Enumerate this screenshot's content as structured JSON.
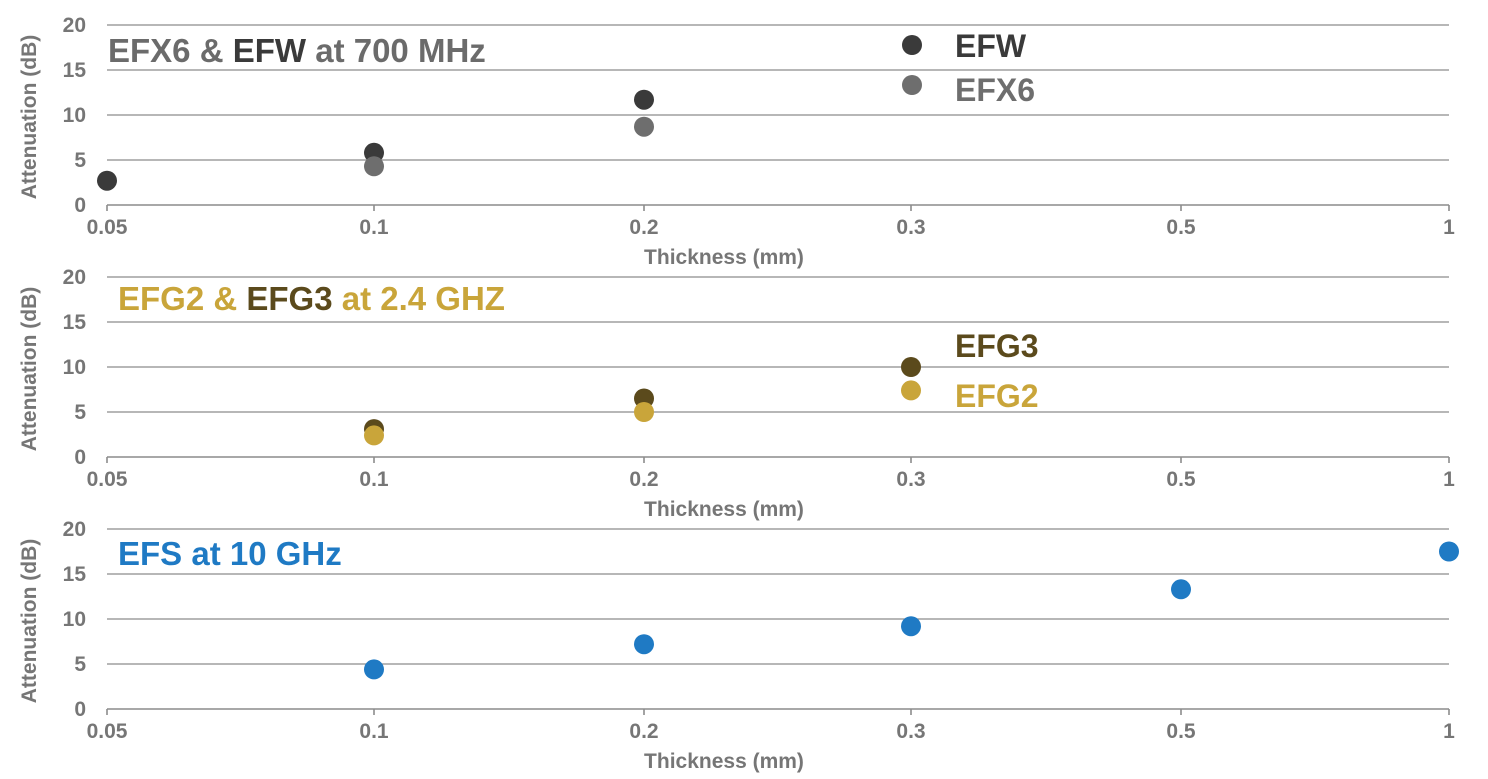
{
  "chart_data": [
    {
      "type": "scatter",
      "title_parts": [
        {
          "text": "EFX6",
          "color": "#6b6b6b"
        },
        {
          "text": " & ",
          "color": "#6b6b6b"
        },
        {
          "text": "EFW",
          "color": "#3a3a3a"
        },
        {
          "text": " at 700 MHz",
          "color": "#6b6b6b"
        }
      ],
      "xlabel": "Thickness (mm)",
      "ylabel": "Attenuation (dB)",
      "x_categories": [
        "0.05",
        "0.1",
        "0.2",
        "0.3",
        "0.5",
        "1"
      ],
      "y_ticks": [
        "0",
        "5",
        "10",
        "15",
        "20"
      ],
      "ylim": [
        0,
        20
      ],
      "grid": true,
      "legend_position": "top-right",
      "series": [
        {
          "name": "EFW",
          "color": "#3a3a3a",
          "points": [
            {
              "x": "0.05",
              "y": 2.7
            },
            {
              "x": "0.1",
              "y": 5.8
            },
            {
              "x": "0.2",
              "y": 11.7
            }
          ]
        },
        {
          "name": "EFX6",
          "color": "#6e6e6e",
          "points": [
            {
              "x": "0.1",
              "y": 4.3
            },
            {
              "x": "0.2",
              "y": 8.7
            }
          ]
        }
      ],
      "legend": [
        {
          "name": "EFW",
          "color": "#3a3a3a",
          "marker": true
        },
        {
          "name": "EFX6",
          "color": "#6e6e6e",
          "marker": true
        }
      ]
    },
    {
      "type": "scatter",
      "title_parts": [
        {
          "text": "EFG2",
          "color": "#c9a53a"
        },
        {
          "text": " & ",
          "color": "#c9a53a"
        },
        {
          "text": "EFG3",
          "color": "#5b4a1c"
        },
        {
          "text": " at 2.4 GHZ",
          "color": "#c9a53a"
        }
      ],
      "xlabel": "Thickness (mm)",
      "ylabel": "Attenuation (dB)",
      "x_categories": [
        "0.05",
        "0.1",
        "0.2",
        "0.3",
        "0.5",
        "1"
      ],
      "y_ticks": [
        "0",
        "5",
        "10",
        "15",
        "20"
      ],
      "ylim": [
        0,
        20
      ],
      "grid": true,
      "legend_position": "right",
      "series": [
        {
          "name": "EFG3",
          "color": "#5b4a1c",
          "points": [
            {
              "x": "0.1",
              "y": 3.1
            },
            {
              "x": "0.2",
              "y": 6.5
            },
            {
              "x": "0.3",
              "y": 10.0
            }
          ]
        },
        {
          "name": "EFG2",
          "color": "#c9a53a",
          "points": [
            {
              "x": "0.1",
              "y": 2.4
            },
            {
              "x": "0.2",
              "y": 5.0
            },
            {
              "x": "0.3",
              "y": 7.4
            }
          ]
        }
      ],
      "legend": [
        {
          "name": "EFG3",
          "color": "#5b4a1c",
          "marker": false
        },
        {
          "name": "EFG2",
          "color": "#c9a53a",
          "marker": false
        }
      ]
    },
    {
      "type": "scatter",
      "title_parts": [
        {
          "text": "EFS at 10 GHz",
          "color": "#1f7ac4"
        }
      ],
      "xlabel": "Thickness (mm)",
      "ylabel": "Attenuation (dB)",
      "x_categories": [
        "0.05",
        "0.1",
        "0.2",
        "0.3",
        "0.5",
        "1"
      ],
      "y_ticks": [
        "0",
        "5",
        "10",
        "15",
        "20"
      ],
      "ylim": [
        0,
        20
      ],
      "grid": true,
      "series": [
        {
          "name": "EFS",
          "color": "#1f7ac4",
          "points": [
            {
              "x": "0.1",
              "y": 4.4
            },
            {
              "x": "0.2",
              "y": 7.2
            },
            {
              "x": "0.3",
              "y": 9.2
            },
            {
              "x": "0.5",
              "y": 13.3
            },
            {
              "x": "1",
              "y": 17.5
            }
          ]
        }
      ],
      "legend": []
    }
  ]
}
